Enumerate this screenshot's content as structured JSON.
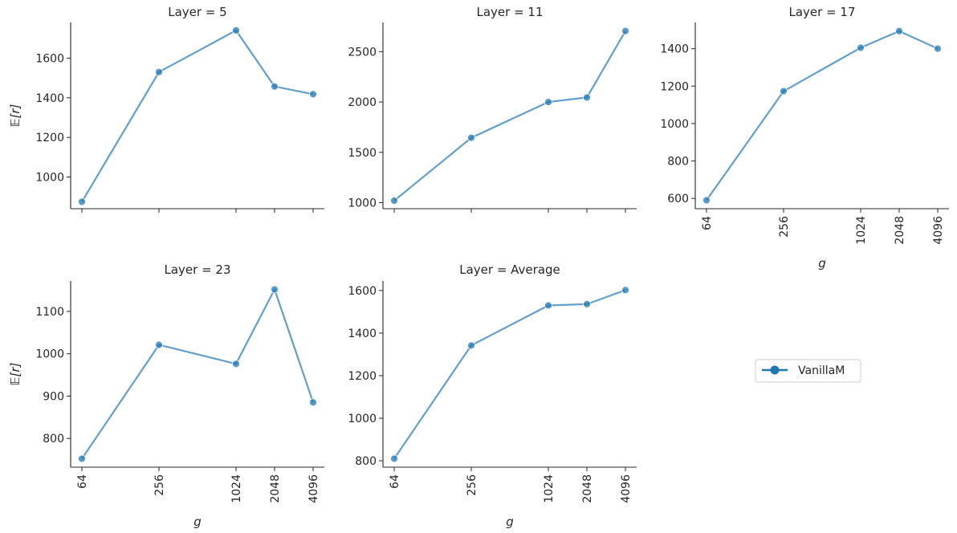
{
  "figure": {
    "x_label": "g",
    "y_label": "𝔼[r]"
  },
  "legend": {
    "entries": [
      {
        "name": "VanillaM",
        "color": "#1f77b4"
      }
    ]
  },
  "chart_data": [
    {
      "type": "line",
      "title": "Layer = 5",
      "x": [
        64,
        256,
        1024,
        2048,
        4096
      ],
      "x_tick_labels": [
        "64",
        "256",
        "1024",
        "2048",
        "4096"
      ],
      "x_scale": "log2",
      "series": [
        {
          "name": "VanillaM",
          "values": [
            875,
            1530,
            1740,
            1457,
            1418
          ],
          "color": "#1f77b4"
        }
      ],
      "ylim": [
        840,
        1780
      ],
      "y_ticks": [
        1000,
        1200,
        1400,
        1600
      ],
      "xlabel": "",
      "ylabel": "𝔼[r]",
      "show_x_tick_labels": false
    },
    {
      "type": "line",
      "title": "Layer = 11",
      "x": [
        64,
        256,
        1024,
        2048,
        4096
      ],
      "x_tick_labels": [
        "64",
        "256",
        "1024",
        "2048",
        "4096"
      ],
      "x_scale": "log2",
      "series": [
        {
          "name": "VanillaM",
          "values": [
            1020,
            1645,
            2000,
            2045,
            2705
          ],
          "color": "#1f77b4"
        }
      ],
      "ylim": [
        940,
        2790
      ],
      "y_ticks": [
        1000,
        1500,
        2000,
        2500
      ],
      "xlabel": "",
      "ylabel": "",
      "show_x_tick_labels": false
    },
    {
      "type": "line",
      "title": "Layer = 17",
      "x": [
        64,
        256,
        1024,
        2048,
        4096
      ],
      "x_tick_labels": [
        "64",
        "256",
        "1024",
        "2048",
        "4096"
      ],
      "x_scale": "log2",
      "series": [
        {
          "name": "VanillaM",
          "values": [
            590,
            1173,
            1405,
            1494,
            1400
          ],
          "color": "#1f77b4"
        }
      ],
      "ylim": [
        545,
        1540
      ],
      "y_ticks": [
        600,
        800,
        1000,
        1200,
        1400
      ],
      "xlabel": "g",
      "ylabel": "",
      "show_x_tick_labels": true
    },
    {
      "type": "line",
      "title": "Layer = 23",
      "x": [
        64,
        256,
        1024,
        2048,
        4096
      ],
      "x_tick_labels": [
        "64",
        "256",
        "1024",
        "2048",
        "4096"
      ],
      "x_scale": "log2",
      "series": [
        {
          "name": "VanillaM",
          "values": [
            752,
            1021,
            976,
            1152,
            885
          ],
          "color": "#1f77b4"
        }
      ],
      "ylim": [
        732,
        1172
      ],
      "y_ticks": [
        800,
        900,
        1000,
        1100
      ],
      "xlabel": "g",
      "ylabel": "𝔼[r]",
      "show_x_tick_labels": true
    },
    {
      "type": "line",
      "title": "Layer = Average",
      "x": [
        64,
        256,
        1024,
        2048,
        4096
      ],
      "x_tick_labels": [
        "64",
        "256",
        "1024",
        "2048",
        "4096"
      ],
      "x_scale": "log2",
      "series": [
        {
          "name": "VanillaM",
          "values": [
            810,
            1342,
            1530,
            1536,
            1602
          ],
          "color": "#1f77b4"
        }
      ],
      "ylim": [
        770,
        1645
      ],
      "y_ticks": [
        800,
        1000,
        1200,
        1400,
        1600
      ],
      "xlabel": "g",
      "ylabel": "",
      "show_x_tick_labels": true
    }
  ]
}
